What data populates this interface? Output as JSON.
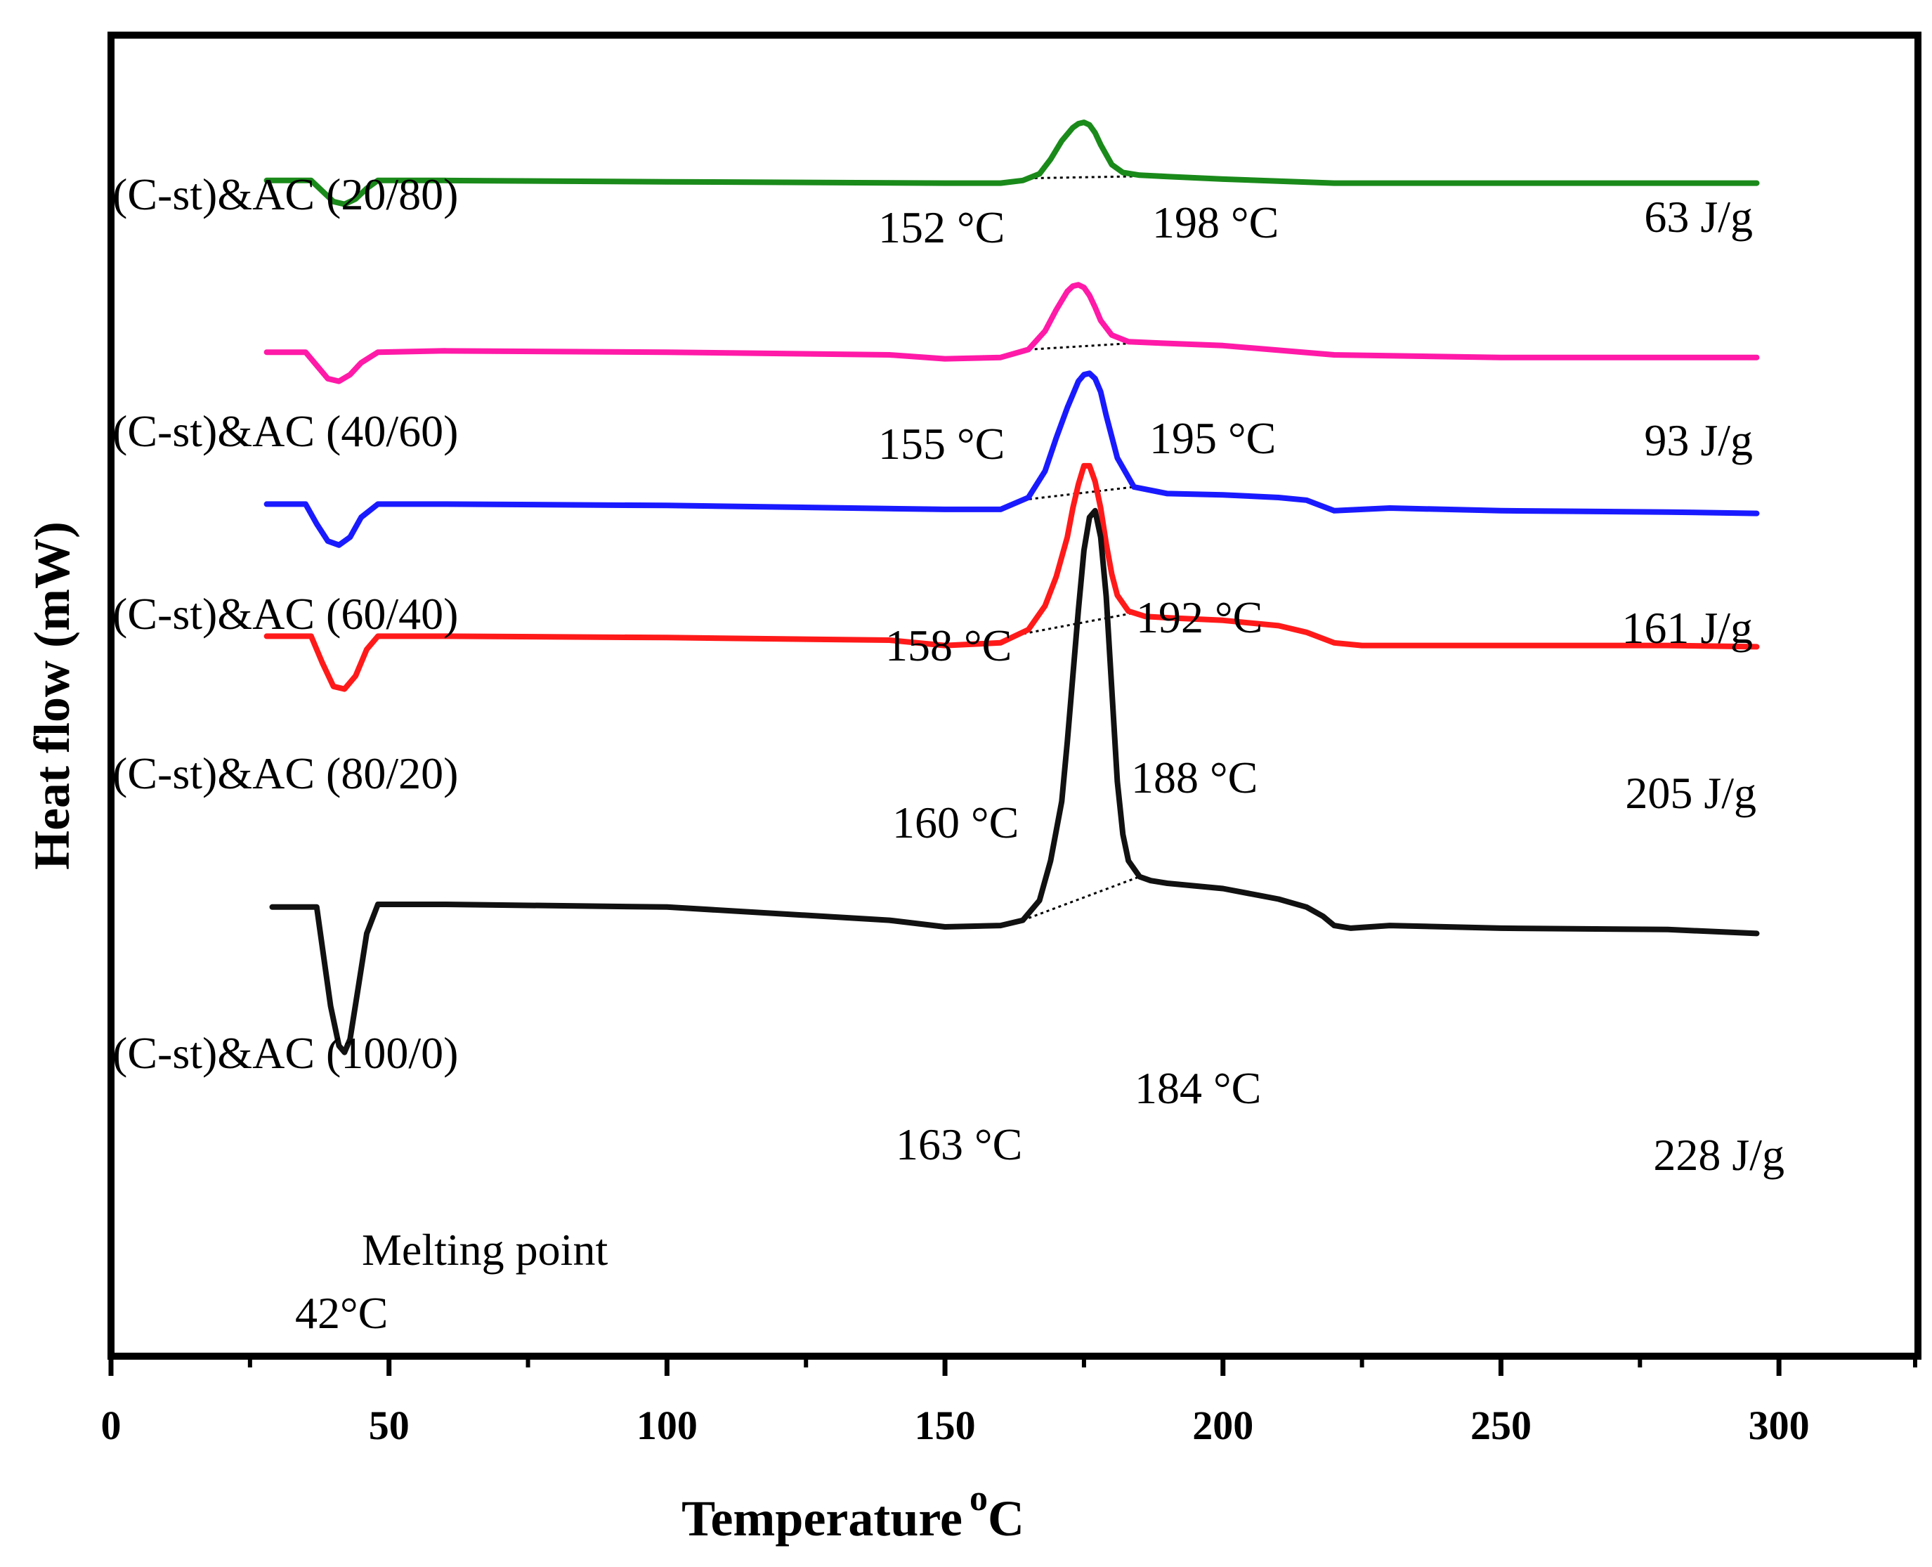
{
  "chart_data": {
    "type": "line",
    "title": "",
    "xlabel": "Temperature",
    "xlabel_unit": "oC",
    "ylabel": "Heat flow (mW)",
    "xlim": [
      0,
      325
    ],
    "ylim": [
      0,
      10
    ],
    "x_ticks": [
      0,
      50,
      100,
      150,
      200,
      250,
      300
    ],
    "grid": false,
    "y_tick_labels": false,
    "series": [
      {
        "name": "(C-st)&AC (20/80)",
        "color": "#1a8a1a",
        "x": [
          28,
          36,
          38,
          40,
          42,
          44,
          46,
          48,
          60,
          100,
          150,
          160,
          164,
          167,
          169,
          171,
          173,
          174,
          175,
          176,
          177,
          178,
          180,
          182,
          185,
          190,
          200,
          220,
          250,
          280,
          296
        ],
        "y": [
          8.9,
          8.9,
          8.82,
          8.74,
          8.72,
          8.76,
          8.84,
          8.9,
          8.9,
          8.89,
          8.88,
          8.88,
          8.9,
          8.95,
          9.06,
          9.2,
          9.3,
          9.33,
          9.34,
          9.32,
          9.26,
          9.17,
          9.02,
          8.96,
          8.94,
          8.93,
          8.91,
          8.88,
          8.88,
          8.88,
          8.88
        ],
        "onset_label": "152 °C",
        "endset_label": "198 °C",
        "enthalpy_label": "63 J/g"
      },
      {
        "name": "(C-st)&AC (40/60)",
        "color": "#ff1aa8",
        "x": [
          28,
          35,
          37,
          39,
          41,
          43,
          45,
          48,
          60,
          100,
          140,
          150,
          160,
          165,
          168,
          170,
          172,
          173,
          174,
          175,
          176,
          177,
          178,
          180,
          183,
          188,
          200,
          220,
          250,
          296
        ],
        "y": [
          7.6,
          7.6,
          7.5,
          7.4,
          7.38,
          7.43,
          7.52,
          7.6,
          7.61,
          7.6,
          7.58,
          7.55,
          7.56,
          7.62,
          7.76,
          7.92,
          8.06,
          8.1,
          8.11,
          8.09,
          8.03,
          7.94,
          7.84,
          7.73,
          7.68,
          7.67,
          7.65,
          7.58,
          7.56,
          7.56
        ],
        "onset_label": "155 °C",
        "endset_label": "195 °C",
        "enthalpy_label": "93 J/g"
      },
      {
        "name": "(C-st)&AC (60/40)",
        "color": "#1a1aff",
        "x": [
          28,
          35,
          37,
          39,
          41,
          43,
          45,
          48,
          60,
          100,
          150,
          160,
          165,
          168,
          170,
          172,
          174,
          175,
          176,
          177,
          178,
          179,
          181,
          184,
          190,
          200,
          210,
          215,
          220,
          230,
          250,
          280,
          296
        ],
        "y": [
          6.45,
          6.45,
          6.3,
          6.17,
          6.14,
          6.2,
          6.35,
          6.45,
          6.45,
          6.44,
          6.41,
          6.41,
          6.5,
          6.7,
          6.95,
          7.18,
          7.38,
          7.43,
          7.44,
          7.4,
          7.3,
          7.12,
          6.8,
          6.58,
          6.53,
          6.52,
          6.5,
          6.48,
          6.4,
          6.42,
          6.4,
          6.39,
          6.38
        ],
        "onset_label": "158 °C",
        "endset_label": "192 °C",
        "enthalpy_label": "161 J/g"
      },
      {
        "name": "(C-st)&AC (80/20)",
        "color": "#ff1a1a",
        "x": [
          28,
          36,
          38,
          40,
          42,
          44,
          46,
          48,
          60,
          100,
          140,
          150,
          160,
          165,
          168,
          170,
          172,
          173,
          174,
          175,
          176,
          177,
          178,
          179,
          180,
          181,
          183,
          186,
          190,
          200,
          210,
          215,
          220,
          225,
          250,
          280,
          296
        ],
        "y": [
          5.45,
          5.45,
          5.25,
          5.07,
          5.05,
          5.15,
          5.35,
          5.45,
          5.45,
          5.44,
          5.42,
          5.38,
          5.4,
          5.5,
          5.68,
          5.9,
          6.2,
          6.42,
          6.6,
          6.74,
          6.74,
          6.62,
          6.42,
          6.15,
          5.92,
          5.76,
          5.64,
          5.6,
          5.59,
          5.57,
          5.53,
          5.48,
          5.4,
          5.38,
          5.38,
          5.38,
          5.37
        ],
        "onset_label": "160 °C",
        "endset_label": "188 °C",
        "enthalpy_label": "205 J/g"
      },
      {
        "name": "(C-st)&AC (100/0)",
        "color": "#111111",
        "x": [
          29,
          37,
          38,
          39.5,
          41,
          42,
          43,
          44.5,
          46,
          48,
          60,
          100,
          140,
          150,
          160,
          164,
          167,
          169,
          171,
          172,
          173,
          174,
          175,
          176,
          177,
          178,
          179,
          180,
          181,
          182,
          183,
          185,
          187,
          190,
          200,
          210,
          215,
          218,
          220,
          223,
          230,
          250,
          280,
          296
        ],
        "y": [
          3.4,
          3.4,
          3.1,
          2.65,
          2.35,
          2.3,
          2.4,
          2.8,
          3.2,
          3.42,
          3.42,
          3.4,
          3.3,
          3.25,
          3.26,
          3.3,
          3.45,
          3.75,
          4.2,
          4.65,
          5.15,
          5.65,
          6.1,
          6.35,
          6.4,
          6.2,
          5.75,
          5.05,
          4.35,
          3.95,
          3.75,
          3.63,
          3.6,
          3.58,
          3.54,
          3.46,
          3.4,
          3.33,
          3.26,
          3.24,
          3.26,
          3.24,
          3.23,
          3.2
        ],
        "onset_label": "163 °C",
        "endset_label": "184 °C",
        "enthalpy_label": "228 J/g",
        "melting_point_label": "Melting point",
        "melting_point_value": "42°C"
      }
    ]
  }
}
